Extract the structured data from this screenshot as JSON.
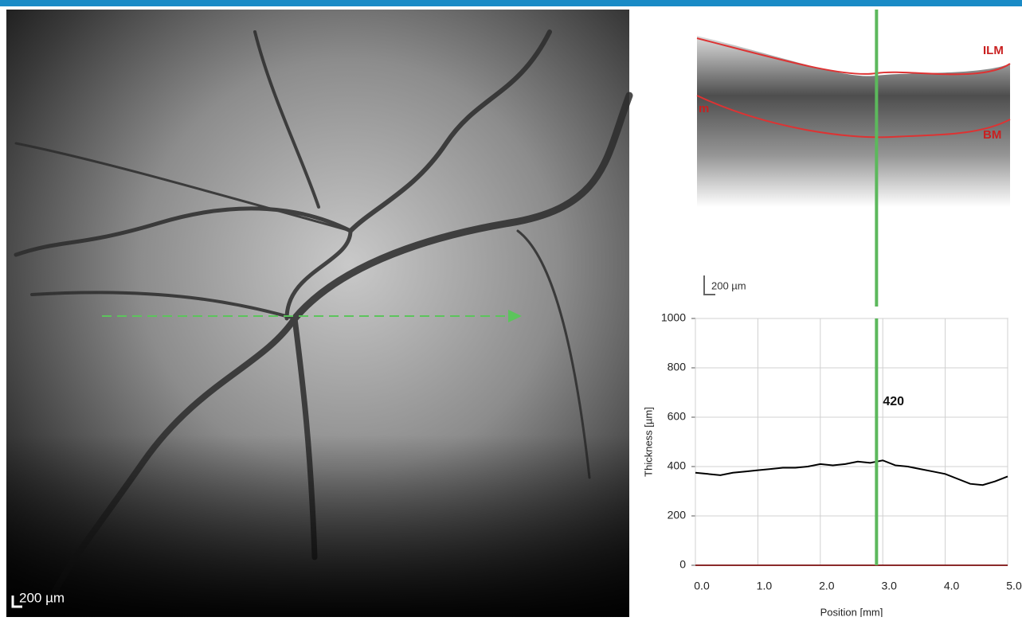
{
  "fundus": {
    "scale_label": "200 µm"
  },
  "oct": {
    "labels": [
      "ILM",
      "m",
      "BM"
    ],
    "scale_label": "200 µm"
  },
  "chart_data": {
    "type": "line",
    "xlabel": "Position [mm]",
    "ylabel": "Thickness [µm]",
    "x": [
      0,
      0.2,
      0.4,
      0.6,
      0.8,
      1.0,
      1.2,
      1.4,
      1.6,
      1.8,
      2.0,
      2.2,
      2.4,
      2.6,
      2.8,
      2.9,
      3.0,
      3.2,
      3.4,
      3.6,
      3.8,
      4.0,
      4.2,
      4.4,
      4.6,
      4.8,
      5.0
    ],
    "series": [
      {
        "color": "#000000",
        "values": [
          375,
          370,
          365,
          375,
          380,
          385,
          390,
          395,
          395,
          400,
          410,
          405,
          410,
          420,
          415,
          420,
          425,
          405,
          400,
          390,
          380,
          370,
          350,
          330,
          325,
          340,
          360
        ]
      }
    ],
    "xlim": [
      0,
      5
    ],
    "ylim": [
      0,
      1000
    ],
    "xticks": [
      {
        "value": 0,
        "label": "0.0"
      },
      {
        "value": 1,
        "label": "1.0"
      },
      {
        "value": 2,
        "label": "2.0"
      },
      {
        "value": 3,
        "label": "3.0"
      },
      {
        "value": 4,
        "label": "4.0"
      },
      {
        "value": 5,
        "label": "5.0"
      }
    ],
    "yticks": [
      0,
      200,
      400,
      600,
      800,
      1000
    ],
    "grid": true,
    "marker": {
      "x": 2.9,
      "value": 420,
      "color": "#5cb85c"
    }
  }
}
